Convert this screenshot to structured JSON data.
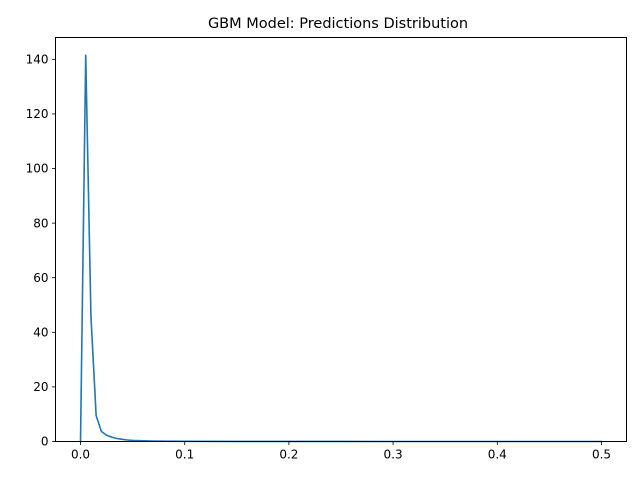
{
  "chart_data": {
    "type": "line",
    "title": "GBM Model: Predictions Distribution",
    "xlabel": "",
    "ylabel": "",
    "xlim": [
      -0.024,
      0.524
    ],
    "ylim": [
      0,
      148
    ],
    "xticks": [
      0.0,
      0.1,
      0.2,
      0.3,
      0.4,
      0.5
    ],
    "xtick_labels": [
      "0.0",
      "0.1",
      "0.2",
      "0.3",
      "0.4",
      "0.5"
    ],
    "yticks": [
      0,
      20,
      40,
      60,
      80,
      100,
      120,
      140
    ],
    "ytick_labels": [
      "0",
      "20",
      "40",
      "60",
      "80",
      "100",
      "120",
      "140"
    ],
    "grid": false,
    "series": [
      {
        "color": "#1f77b4",
        "x": [
          0.0,
          0.005,
          0.01,
          0.015,
          0.02,
          0.025,
          0.03,
          0.035,
          0.04,
          0.045,
          0.05,
          0.06,
          0.07,
          0.08,
          0.1,
          0.15,
          0.2,
          0.25,
          0.3,
          0.35,
          0.4,
          0.45,
          0.5
        ],
        "y": [
          0,
          141.5,
          46,
          9.5,
          3.7,
          2.3,
          1.6,
          1.1,
          0.8,
          0.55,
          0.4,
          0.25,
          0.15,
          0.1,
          0.05,
          0.02,
          0.01,
          0.01,
          0.0,
          0.0,
          0.0,
          0.0,
          0.0
        ]
      }
    ]
  }
}
